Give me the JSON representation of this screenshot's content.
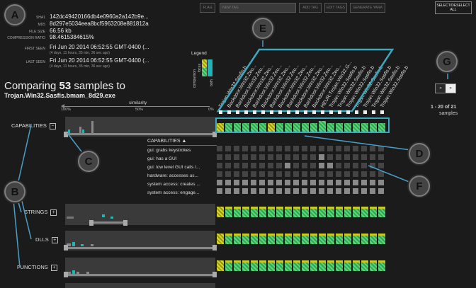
{
  "callouts": [
    "A",
    "B",
    "C",
    "D",
    "E",
    "F",
    "G"
  ],
  "metadata": [
    {
      "key": "SHA1",
      "value": "142dc49420166db4e0960a2a142b9e..."
    },
    {
      "key": "MD5",
      "value": "8d297e5034eea8bcf5963208e881812a"
    },
    {
      "key": "FILE SIZE",
      "value": "66.56 kb"
    },
    {
      "key": "COMPRESSION RATIO",
      "value": "98.4615384615%"
    },
    {
      "key": "FIRST SEEN",
      "value": "Fri Jun 20 2014 06:52:55 GMT-0400 (...",
      "sub": "(4 days, 11 hours, 35 min, 36 sec ago)"
    },
    {
      "key": "LAST SEEN",
      "value": "Fri Jun 20 2014 06:52:55 GMT-0400 (...",
      "sub": "(4 days, 11 hours, 35 min, 36 sec ago)"
    }
  ],
  "toolbar": {
    "flag": "FLAG",
    "tag_placeholder": "NEW TAG",
    "add_tag": "ADD TAG",
    "edit_tags": "EDIT TAGS",
    "generate_yara": "GENERATE YARA",
    "select_all": "SELECT/DESELECT ALL"
  },
  "legend": {
    "title": "Legend",
    "comparison": "comparison",
    "focus": "focus",
    "both": "both",
    "colors": {
      "focus": "#c8c828",
      "both": "#3fbf5f",
      "comparison": "#1fb5b5"
    }
  },
  "comparing": {
    "prefix": "Comparing",
    "count": "53",
    "suffix": "samples to",
    "target": "Trojan.Win32.Sasfis.bmam_8d29.exe"
  },
  "similarity": {
    "label": "similarity",
    "ticks": [
      "100%",
      "50%",
      "0%"
    ]
  },
  "sections": [
    {
      "label": "CAPABILITIES",
      "toggle": "−"
    },
    {
      "label": "STRINGS",
      "toggle": "+"
    },
    {
      "label": "DLLS",
      "toggle": "+"
    },
    {
      "label": "FUNCTIONS",
      "toggle": "+"
    }
  ],
  "capabilities_list": {
    "header": "CAPABILITIES",
    "items": [
      "gui: grabs keystrokes",
      "gui: has a GUI",
      "gui: low level GUI calls /...",
      "hardware: accesses us...",
      "system access: creates ...",
      "system access: engage..."
    ]
  },
  "columns": [
    "Trojan.Win32.Sasfis.b",
    "Backdoor.Win32.Zeu...",
    "Backdoor.Win32.Zeu...",
    "Backdoor.Win32.Zeu...",
    "Backdoor.Win32.Zeu...",
    "Backdoor.Win32.Zeu...",
    "Backdoor.Win32.Zeu...",
    "Backdoor.Win32.Zeu...",
    "Backdoor.Win32.Zeu...",
    "Backdoor.Win32.Zeu...",
    "Backdoor.Win32.Zeu...",
    "Backdoor.Win32.Zeu...",
    "HEUR:Trojan.Win32.G...",
    "Trojan.Win32.Sasfis.b",
    "Trojan.Win32.Sasfis.b",
    "Trojan.Win32.Sasfis.b",
    "Trojan.Win32.Sasfis.b",
    "Trojan.Win32.Sasfis.b",
    "Trojan.Win32.Sasfis.b",
    "Trojan.Win32.Sasfis.b"
  ],
  "cap_cells": [
    "yellow",
    "green",
    "green",
    "green",
    "green",
    "green",
    "yellow",
    "green",
    "green",
    "green",
    "green",
    "green",
    "green",
    "green",
    "green",
    "green",
    "green",
    "green",
    "green",
    "green"
  ],
  "pager": {
    "range": "1 - 20 of 21",
    "unit": "samples",
    "left": "«",
    "right": "»"
  }
}
